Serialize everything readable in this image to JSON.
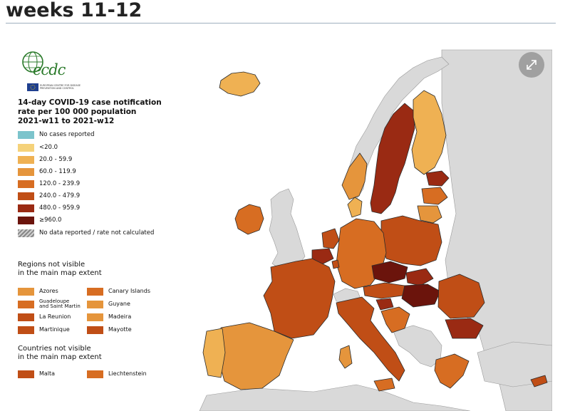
{
  "page": {
    "heading": "weeks 11-12"
  },
  "logo": {
    "wordmark": "ecdc",
    "caption": "European Centre for Disease Prevention and Control"
  },
  "legend": {
    "title_line1": "14-day COVID-19 case notification",
    "title_line2": "rate per 100 000 population",
    "title_line3": "2021-w11 to 2021-w12",
    "classes": [
      {
        "label": "No cases reported",
        "color": "#7cc4cc"
      },
      {
        "label": "<20.0",
        "color": "#f5d27a"
      },
      {
        "label": "20.0 - 59.9",
        "color": "#efb153"
      },
      {
        "label": "60.0 - 119.9",
        "color": "#e5953c"
      },
      {
        "label": "120.0 - 239.9",
        "color": "#d76d22"
      },
      {
        "label": "240.0 - 479.9",
        "color": "#c04e16"
      },
      {
        "label": "480.0 - 959.9",
        "color": "#9a2a13"
      },
      {
        "label": "≥960.0",
        "color": "#6b140c"
      },
      {
        "label": "No data reported / rate not calculated",
        "color": "#a8a8a8"
      }
    ],
    "regions_title_line1": "Regions not visible",
    "regions_title_line2": "in the main map extent",
    "regions": [
      {
        "label": "Azores",
        "color": "#e5953c"
      },
      {
        "label": "Canary Islands",
        "color": "#d76d22"
      },
      {
        "label_line1": "Guadeloupe",
        "label_line2": "and Saint Martin",
        "color": "#d76d22"
      },
      {
        "label": "Guyane",
        "color": "#e5953c"
      },
      {
        "label": "La Reunion",
        "color": "#c04e16"
      },
      {
        "label": "Madeira",
        "color": "#e5953c"
      },
      {
        "label": "Martinique",
        "color": "#c04e16"
      },
      {
        "label": "Mayotte",
        "color": "#c04e16"
      }
    ],
    "countries_title_line1": "Countries not visible",
    "countries_title_line2": "in the main map extent",
    "countries": [
      {
        "label": "Malta",
        "color": "#c04e16"
      },
      {
        "label": "Liechtenstein",
        "color": "#d76d22"
      }
    ]
  },
  "map": {
    "sea_color": "#ffffff",
    "non_eu_color": "#d9d9d9",
    "border_color": "#2b2b2b"
  },
  "controls": {
    "expand_icon": "expand-arrows-icon"
  }
}
